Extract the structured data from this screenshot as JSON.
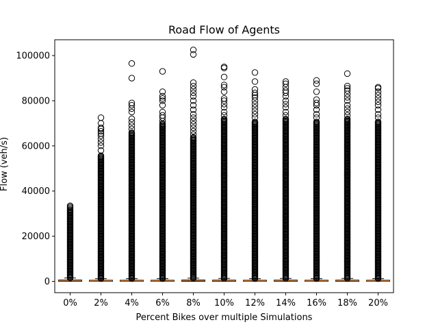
{
  "chart_data": {
    "type": "box",
    "title": "Road Flow of Agents",
    "xlabel": "Percent Bikes over multiple Simulations",
    "ylabel": "Flow (veh/s)",
    "categories": [
      "0%",
      "2%",
      "4%",
      "6%",
      "8%",
      "10%",
      "12%",
      "14%",
      "16%",
      "18%",
      "20%"
    ],
    "ylim": [
      -5000,
      107000
    ],
    "yticks": [
      0,
      20000,
      40000,
      60000,
      80000,
      100000
    ],
    "ytick_labels": [
      "0",
      "20000",
      "40000",
      "60000",
      "80000",
      "100000"
    ],
    "grid": false,
    "legend": "none",
    "colors": {
      "median": "#ff7f0e",
      "box": "#000000",
      "flier": "#000000"
    },
    "boxes": [
      {
        "category": "0%",
        "q1": 0,
        "median": 250,
        "q3": 600,
        "whisker_low": 0,
        "whisker_high": 1500,
        "flier_dense_range": [
          1500,
          32000
        ],
        "fliers_sparse": [
          32500,
          33000,
          33500
        ]
      },
      {
        "category": "2%",
        "q1": 0,
        "median": 200,
        "q3": 500,
        "whisker_low": 0,
        "whisker_high": 1200,
        "flier_dense_range": [
          1200,
          56000
        ],
        "fliers_sparse": [
          58000,
          60000,
          61500,
          63000,
          64500,
          65500,
          66500,
          67500,
          68000,
          70000,
          72500
        ]
      },
      {
        "category": "4%",
        "q1": 0,
        "median": 200,
        "q3": 500,
        "whisker_low": 0,
        "whisker_high": 1200,
        "flier_dense_range": [
          1200,
          66000
        ],
        "fliers_sparse": [
          67500,
          69000,
          70500,
          72000,
          75000,
          76500,
          78000,
          79000,
          90000,
          96500
        ]
      },
      {
        "category": "6%",
        "q1": 0,
        "median": 200,
        "q3": 500,
        "whisker_low": 0,
        "whisker_high": 1200,
        "flier_dense_range": [
          1200,
          70000
        ],
        "fliers_sparse": [
          71000,
          72500,
          73500,
          75000,
          78000,
          80000,
          81000,
          82000,
          84000,
          93000
        ]
      },
      {
        "category": "8%",
        "q1": 0,
        "median": 300,
        "q3": 600,
        "whisker_low": 0,
        "whisker_high": 1400,
        "flier_dense_range": [
          1400,
          64000
        ],
        "fliers_sparse": [
          65000,
          66500,
          68000,
          69500,
          71000,
          72500,
          74000,
          76000,
          78000,
          80000,
          82000,
          83500,
          85000,
          86500,
          88000,
          100500,
          102500
        ]
      },
      {
        "category": "10%",
        "q1": 0,
        "median": 250,
        "q3": 550,
        "whisker_low": 0,
        "whisker_high": 1300,
        "flier_dense_range": [
          1300,
          72000
        ],
        "fliers_sparse": [
          73500,
          75000,
          77000,
          78500,
          80000,
          81000,
          84000,
          86000,
          87000,
          90500,
          94500,
          95000
        ]
      },
      {
        "category": "12%",
        "q1": 0,
        "median": 200,
        "q3": 500,
        "whisker_low": 0,
        "whisker_high": 1200,
        "flier_dense_range": [
          1200,
          71000
        ],
        "fliers_sparse": [
          72500,
          74000,
          75500,
          77000,
          78500,
          80000,
          81500,
          82500,
          83500,
          85000,
          88500,
          92500
        ]
      },
      {
        "category": "14%",
        "q1": 0,
        "median": 250,
        "q3": 550,
        "whisker_low": 0,
        "whisker_high": 1300,
        "flier_dense_range": [
          1300,
          72000
        ],
        "fliers_sparse": [
          73500,
          75000,
          77000,
          78500,
          80000,
          82000,
          83500,
          84500,
          86000,
          87500,
          88500
        ]
      },
      {
        "category": "16%",
        "q1": 0,
        "median": 200,
        "q3": 500,
        "whisker_low": 0,
        "whisker_high": 1200,
        "flier_dense_range": [
          1200,
          71000
        ],
        "fliers_sparse": [
          72500,
          74000,
          76000,
          78000,
          79000,
          80500,
          84000,
          87500,
          89000
        ]
      },
      {
        "category": "18%",
        "q1": 0,
        "median": 250,
        "q3": 550,
        "whisker_low": 0,
        "whisker_high": 1300,
        "flier_dense_range": [
          1300,
          72000
        ],
        "fliers_sparse": [
          73500,
          75000,
          76500,
          78000,
          80000,
          81500,
          83000,
          84500,
          85500,
          86500,
          92000
        ]
      },
      {
        "category": "20%",
        "q1": 0,
        "median": 200,
        "q3": 500,
        "whisker_low": 0,
        "whisker_high": 1200,
        "flier_dense_range": [
          1200,
          71000
        ],
        "fliers_sparse": [
          72500,
          74000,
          76000,
          78000,
          79500,
          81000,
          82500,
          84000,
          85500,
          86000
        ]
      }
    ]
  }
}
